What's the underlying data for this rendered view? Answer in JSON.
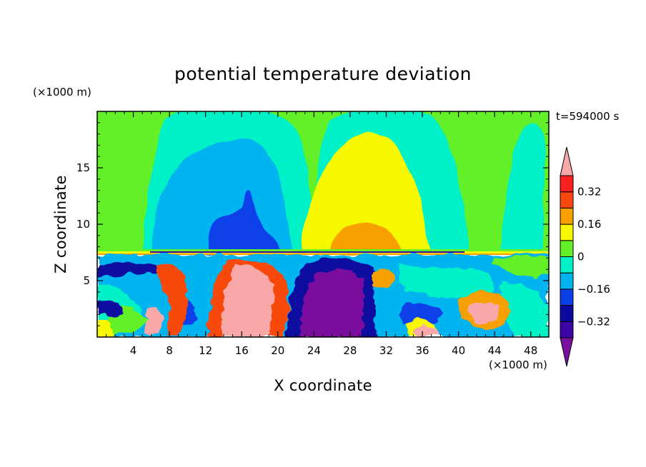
{
  "chart_data": {
    "type": "heatmap",
    "title": "potential temperature deviation",
    "xlabel": "X coordinate",
    "ylabel": "Z coordinate",
    "x_unit": "(×1000 m)",
    "y_unit": "(×1000 m)",
    "time_label": "t=594000 s",
    "xlim": [
      0,
      50
    ],
    "ylim": [
      0,
      20
    ],
    "x_ticks": [
      4,
      8,
      12,
      16,
      20,
      24,
      28,
      32,
      36,
      40,
      44,
      48
    ],
    "y_ticks": [
      5,
      10,
      15
    ],
    "colorbar": {
      "levels": [
        -0.4,
        -0.32,
        -0.24,
        -0.16,
        -0.08,
        0,
        0.08,
        0.16,
        0.24,
        0.32,
        0.4
      ],
      "labeled_levels": [
        0.32,
        0.16,
        0,
        -0.16,
        -0.32
      ],
      "labels": [
        "0.32",
        "0.16",
        "0",
        "−0.16",
        "−0.32"
      ],
      "colors": [
        "#7a109e",
        "#3c05a5",
        "#0a0aa0",
        "#0b40e8",
        "#00b4f0",
        "#00f0c8",
        "#64f028",
        "#f8f800",
        "#f8a000",
        "#f84810",
        "#f82020",
        "#f8a8a8"
      ],
      "extend": "both"
    },
    "regions": [
      {
        "name": "upper-background",
        "value": 0.02
      },
      {
        "name": "upper-cool-plume-left",
        "x": [
          7,
          22
        ],
        "z": [
          7.8,
          20
        ],
        "value": -0.1
      },
      {
        "name": "upper-cold-core-left",
        "x": [
          12,
          17.5
        ],
        "z": [
          7.8,
          13
        ],
        "value": -0.2
      },
      {
        "name": "upper-warm-plume-center",
        "x": [
          24,
          38
        ],
        "z": [
          7.8,
          18
        ],
        "value": 0.14
      },
      {
        "name": "upper-warm-core-center",
        "x": [
          26,
          32
        ],
        "z": [
          7.8,
          10.5
        ],
        "value": 0.2
      },
      {
        "name": "lower-turbulent-layer",
        "x": [
          0,
          50
        ],
        "z": [
          0,
          7.8
        ],
        "value_range": [
          -0.4,
          0.4
        ]
      },
      {
        "name": "lower-cold-pool",
        "x": [
          23,
          31
        ],
        "z": [
          0,
          6.2
        ],
        "value": -0.38
      },
      {
        "name": "lower-warm-plume",
        "x": [
          13,
          20
        ],
        "z": [
          0,
          7.2
        ],
        "value": 0.4
      }
    ]
  }
}
